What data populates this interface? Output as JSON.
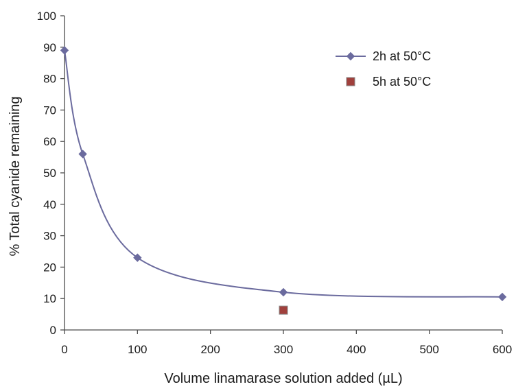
{
  "chart_data": {
    "type": "line",
    "title": "",
    "xlabel": "Volume linamarase solution added (µL)",
    "ylabel": "% Total cyanide remaining",
    "xlim": [
      0,
      600
    ],
    "ylim": [
      0,
      100
    ],
    "x_ticks": [
      0,
      100,
      200,
      300,
      400,
      500,
      600
    ],
    "y_ticks": [
      0,
      10,
      20,
      30,
      40,
      50,
      60,
      70,
      80,
      90,
      100
    ],
    "grid": false,
    "legend_position": "top-right",
    "series": [
      {
        "name": "2h at 50°C",
        "marker": "diamond",
        "color": "#6b6b9e",
        "smooth": true,
        "points": [
          {
            "x": 0,
            "y": 89
          },
          {
            "x": 25,
            "y": 56
          },
          {
            "x": 100,
            "y": 23
          },
          {
            "x": 300,
            "y": 12
          },
          {
            "x": 600,
            "y": 10.5
          }
        ]
      },
      {
        "name": "5h at 50°C",
        "marker": "square",
        "color": "#a0403c",
        "smooth": false,
        "points": [
          {
            "x": 300,
            "y": 6.3
          }
        ]
      }
    ]
  }
}
